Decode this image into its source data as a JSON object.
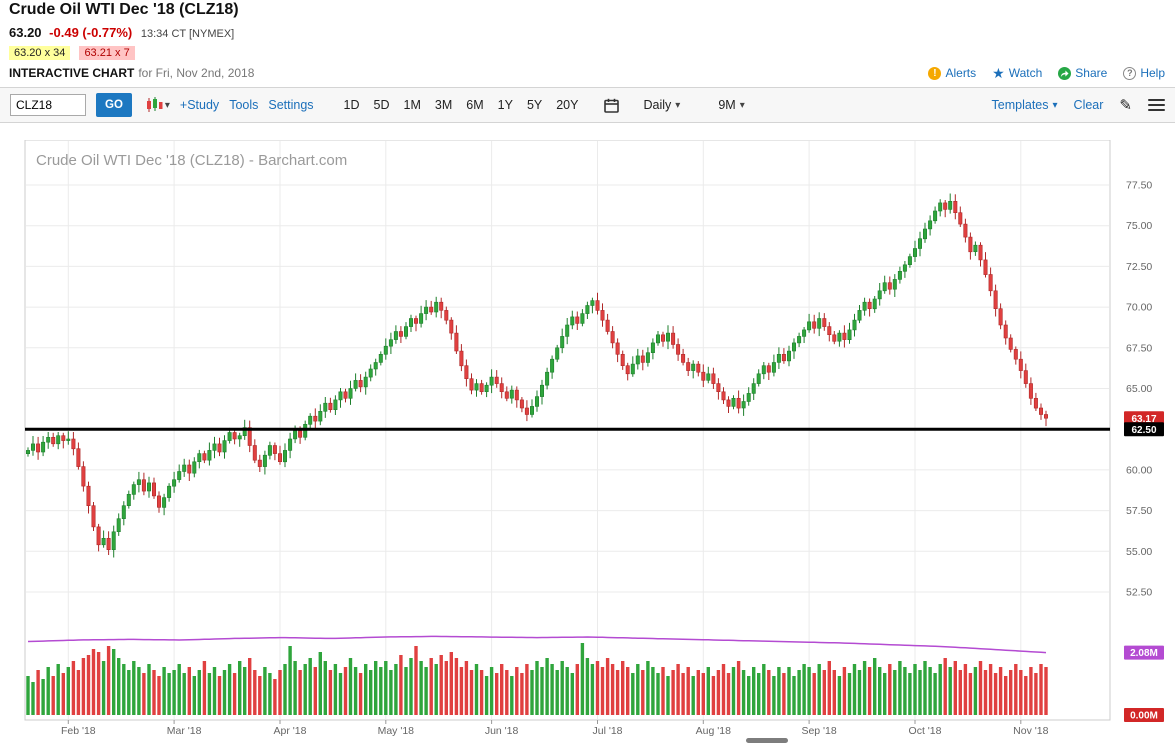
{
  "header": {
    "title": "Crude Oil WTI Dec '18 (CLZ18)",
    "last": "63.20",
    "change": "-0.49 (-0.77%)",
    "time": "13:34 CT [NYMEX]",
    "bid": "63.20 x 34",
    "ask": "63.21 x 7",
    "chart_label": "INTERACTIVE CHART",
    "chart_date": "for Fri, Nov 2nd, 2018",
    "links": {
      "alerts": "Alerts",
      "watch": "Watch",
      "share": "Share",
      "help": "Help"
    }
  },
  "toolbar": {
    "symbol_value": "CLZ18",
    "go": "GO",
    "study": "+Study",
    "tools": "Tools",
    "settings": "Settings",
    "ranges": [
      "1D",
      "5D",
      "1M",
      "3M",
      "6M",
      "1Y",
      "5Y",
      "20Y"
    ],
    "frequency": "Daily",
    "span": "9M",
    "templates": "Templates",
    "clear": "Clear"
  },
  "chart_data": {
    "type": "candlestick",
    "title_watermark": "Crude Oil WTI Dec '18 (CLZ18) - Barchart.com",
    "y_axis": {
      "ticks": [
        77.5,
        75.0,
        72.5,
        70.0,
        67.5,
        65.0,
        62.5,
        60.0,
        57.5,
        55.0,
        52.5
      ],
      "range": [
        51.5,
        78.5
      ]
    },
    "x_axis": {
      "month_labels": [
        "Feb '18",
        "Mar '18",
        "Apr '18",
        "May '18",
        "Jun '18",
        "Jul '18",
        "Aug '18",
        "Sep '18",
        "Oct '18",
        "Nov '18"
      ],
      "month_indices": [
        8,
        29,
        50,
        71,
        92,
        113,
        134,
        155,
        176,
        197
      ]
    },
    "open_first": 61.0,
    "closes": [
      61.2,
      61.6,
      61.1,
      61.7,
      62.0,
      61.6,
      62.1,
      61.8,
      61.9,
      61.3,
      60.2,
      59.0,
      57.8,
      56.5,
      55.4,
      55.8,
      55.1,
      56.2,
      57.0,
      57.8,
      58.5,
      59.1,
      59.4,
      58.7,
      59.2,
      58.4,
      57.7,
      58.3,
      59.0,
      59.4,
      59.9,
      60.3,
      59.8,
      60.5,
      61.0,
      60.6,
      61.2,
      61.6,
      61.1,
      61.8,
      62.3,
      61.9,
      62.1,
      62.6,
      61.5,
      60.6,
      60.2,
      60.9,
      61.5,
      61.0,
      60.5,
      61.2,
      61.9,
      62.4,
      62.0,
      62.8,
      63.3,
      63.0,
      63.6,
      64.1,
      63.7,
      64.3,
      64.8,
      64.4,
      65.0,
      65.5,
      65.1,
      65.7,
      66.2,
      66.6,
      67.1,
      67.6,
      68.0,
      68.5,
      68.2,
      68.8,
      69.3,
      69.0,
      69.6,
      70.0,
      69.7,
      70.3,
      69.8,
      69.2,
      68.4,
      67.3,
      66.4,
      65.6,
      64.9,
      65.3,
      64.8,
      65.2,
      65.7,
      65.3,
      64.8,
      64.4,
      64.9,
      64.3,
      63.8,
      63.4,
      63.9,
      64.5,
      65.2,
      66.0,
      66.8,
      67.5,
      68.2,
      68.9,
      69.4,
      69.0,
      69.6,
      70.1,
      70.4,
      69.8,
      69.2,
      68.5,
      67.8,
      67.1,
      66.4,
      65.9,
      66.5,
      67.0,
      66.6,
      67.2,
      67.8,
      68.3,
      67.9,
      68.4,
      67.7,
      67.1,
      66.6,
      66.1,
      66.5,
      66.0,
      65.5,
      65.9,
      65.3,
      64.8,
      64.3,
      63.9,
      64.4,
      63.8,
      64.2,
      64.7,
      65.3,
      65.9,
      66.4,
      66.0,
      66.6,
      67.1,
      66.7,
      67.3,
      67.8,
      68.2,
      68.6,
      69.1,
      68.7,
      69.3,
      68.8,
      68.3,
      67.9,
      68.4,
      68.0,
      68.6,
      69.2,
      69.8,
      70.3,
      69.9,
      70.5,
      71.0,
      71.5,
      71.1,
      71.7,
      72.2,
      72.6,
      73.1,
      73.6,
      74.2,
      74.8,
      75.3,
      75.9,
      76.4,
      76.0,
      76.5,
      75.8,
      75.1,
      74.3,
      73.4,
      73.8,
      72.9,
      72.0,
      71.0,
      69.9,
      68.9,
      68.1,
      67.4,
      66.8,
      66.1,
      65.3,
      64.4,
      63.8,
      63.4,
      63.17
    ],
    "volumes": [
      1.3,
      1.1,
      1.5,
      1.2,
      1.6,
      1.3,
      1.7,
      1.4,
      1.6,
      1.8,
      1.5,
      1.9,
      2.0,
      2.2,
      2.1,
      1.8,
      2.3,
      2.2,
      1.9,
      1.7,
      1.5,
      1.8,
      1.6,
      1.4,
      1.7,
      1.5,
      1.3,
      1.6,
      1.4,
      1.5,
      1.7,
      1.4,
      1.6,
      1.3,
      1.5,
      1.8,
      1.4,
      1.6,
      1.3,
      1.5,
      1.7,
      1.4,
      1.8,
      1.6,
      1.9,
      1.5,
      1.3,
      1.6,
      1.4,
      1.2,
      1.5,
      1.7,
      2.3,
      1.8,
      1.5,
      1.7,
      1.9,
      1.6,
      2.1,
      1.8,
      1.5,
      1.7,
      1.4,
      1.6,
      1.9,
      1.6,
      1.4,
      1.7,
      1.5,
      1.8,
      1.6,
      1.8,
      1.5,
      1.7,
      2.0,
      1.6,
      1.9,
      2.3,
      1.8,
      1.6,
      1.9,
      1.7,
      2.0,
      1.8,
      2.1,
      1.9,
      1.6,
      1.8,
      1.5,
      1.7,
      1.5,
      1.3,
      1.6,
      1.4,
      1.7,
      1.5,
      1.3,
      1.6,
      1.4,
      1.7,
      1.5,
      1.8,
      1.6,
      1.9,
      1.7,
      1.5,
      1.8,
      1.6,
      1.4,
      1.7,
      2.4,
      1.9,
      1.7,
      1.8,
      1.6,
      1.9,
      1.7,
      1.5,
      1.8,
      1.6,
      1.4,
      1.7,
      1.5,
      1.8,
      1.6,
      1.4,
      1.6,
      1.3,
      1.5,
      1.7,
      1.4,
      1.6,
      1.3,
      1.5,
      1.4,
      1.6,
      1.3,
      1.5,
      1.7,
      1.4,
      1.6,
      1.8,
      1.5,
      1.3,
      1.6,
      1.4,
      1.7,
      1.5,
      1.3,
      1.6,
      1.4,
      1.6,
      1.3,
      1.5,
      1.7,
      1.6,
      1.4,
      1.7,
      1.5,
      1.8,
      1.5,
      1.3,
      1.6,
      1.4,
      1.7,
      1.5,
      1.8,
      1.6,
      1.9,
      1.6,
      1.4,
      1.7,
      1.5,
      1.8,
      1.6,
      1.4,
      1.7,
      1.5,
      1.8,
      1.6,
      1.4,
      1.7,
      1.9,
      1.6,
      1.8,
      1.5,
      1.7,
      1.4,
      1.6,
      1.8,
      1.5,
      1.7,
      1.4,
      1.6,
      1.3,
      1.5,
      1.7,
      1.5,
      1.3,
      1.6,
      1.4,
      1.7,
      1.6
    ],
    "volume_ma": [
      2.45,
      2.5,
      2.52,
      2.5,
      2.55,
      2.58,
      2.55,
      2.6,
      2.62,
      2.6,
      2.58,
      2.6,
      2.56,
      2.52,
      2.48,
      2.44,
      2.4,
      2.34,
      2.28,
      2.18,
      2.08
    ],
    "annotations": {
      "hline_price": 62.5,
      "hline_label": "62.50",
      "last_price_label": "63.17",
      "volume_ma_label": "2.08M",
      "volume_label": "0.00M"
    },
    "colors": {
      "up": "#2fa53c",
      "up_dark": "#1e7f2c",
      "down": "#e04040",
      "down_dark": "#b02828",
      "ma": "#b44bd2",
      "grid": "#ebebeb",
      "axis_text": "#666666",
      "badge_red": "#d22727",
      "badge_black": "#000000"
    }
  }
}
